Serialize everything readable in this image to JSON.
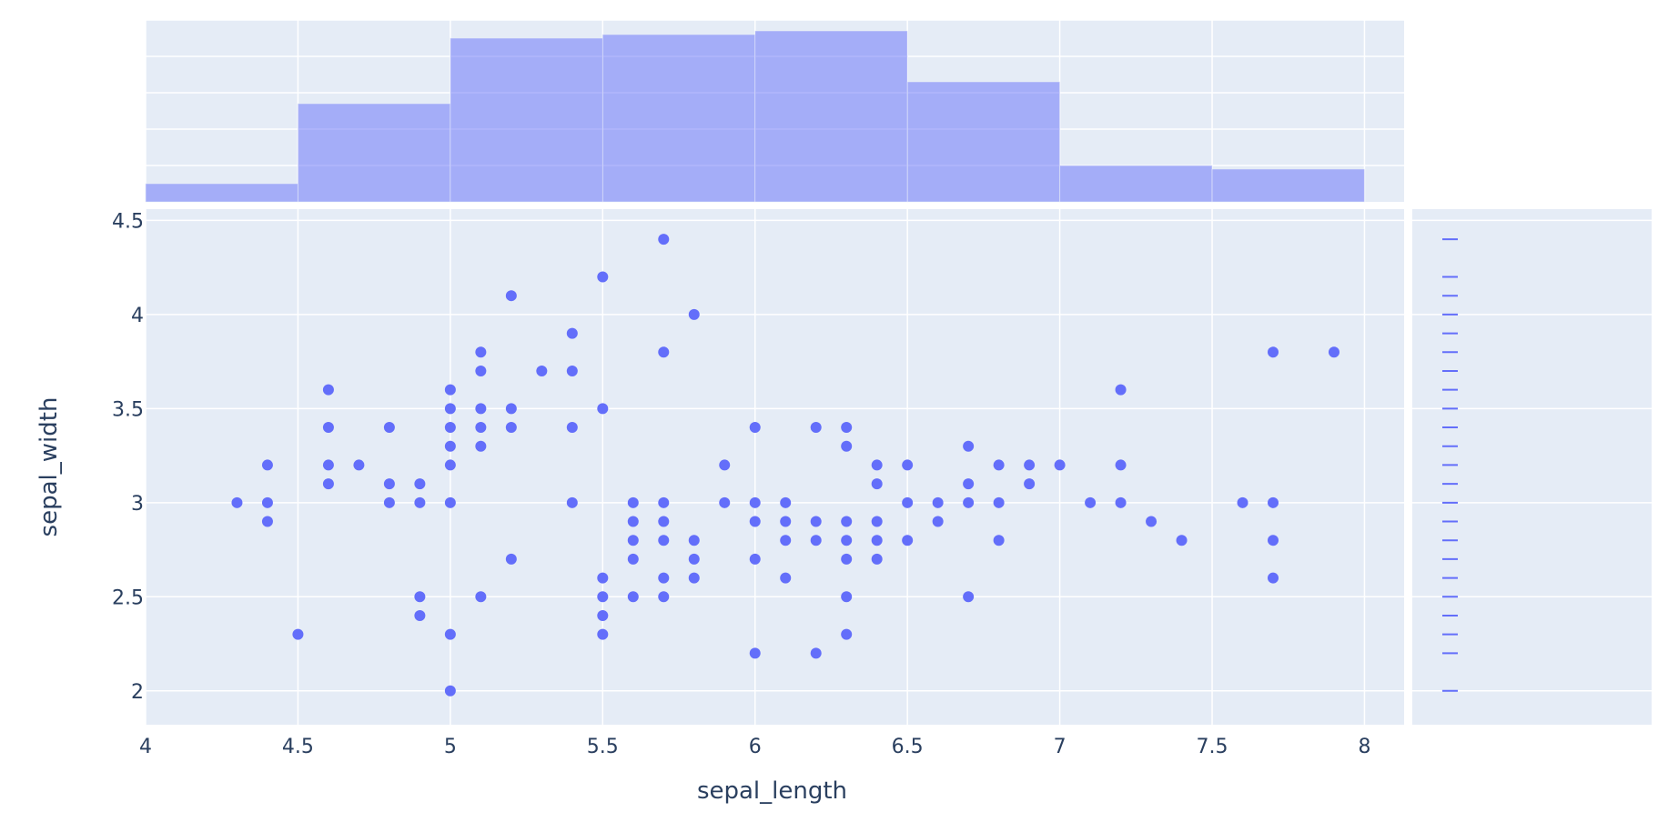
{
  "chart_data": {
    "type": "scatter",
    "xlabel": "sepal_length",
    "ylabel": "sepal_width",
    "xlim": [
      4,
      8.13
    ],
    "ylim": [
      1.82,
      4.56
    ],
    "x_ticks": [
      "4",
      "4.5",
      "5",
      "5.5",
      "6",
      "6.5",
      "7",
      "7.5",
      "8"
    ],
    "y_ticks": [
      "2",
      "2.5",
      "3",
      "3.5",
      "4",
      "4.5"
    ],
    "grid": true,
    "colors": {
      "marker": "#636efa",
      "plot_bg": "#e5ecf6",
      "grid": "#ffffff",
      "text": "#2a3f5f"
    },
    "points": [
      [
        4.3,
        3.0
      ],
      [
        4.4,
        3.2
      ],
      [
        4.4,
        3.0
      ],
      [
        4.4,
        2.9
      ],
      [
        4.5,
        2.3
      ],
      [
        4.6,
        3.6
      ],
      [
        4.6,
        3.4
      ],
      [
        4.6,
        3.2
      ],
      [
        4.6,
        3.1
      ],
      [
        4.7,
        3.2
      ],
      [
        4.8,
        3.4
      ],
      [
        4.8,
        3.1
      ],
      [
        4.8,
        3.0
      ],
      [
        4.9,
        3.1
      ],
      [
        4.9,
        3.0
      ],
      [
        4.9,
        2.5
      ],
      [
        4.9,
        2.4
      ],
      [
        5.0,
        3.6
      ],
      [
        5.0,
        3.5
      ],
      [
        5.0,
        3.4
      ],
      [
        5.0,
        3.3
      ],
      [
        5.0,
        3.2
      ],
      [
        5.0,
        3.0
      ],
      [
        5.0,
        2.3
      ],
      [
        5.0,
        2.0
      ],
      [
        5.1,
        3.8
      ],
      [
        5.1,
        3.7
      ],
      [
        5.1,
        3.5
      ],
      [
        5.1,
        3.4
      ],
      [
        5.1,
        3.3
      ],
      [
        5.1,
        2.5
      ],
      [
        5.2,
        4.1
      ],
      [
        5.2,
        3.5
      ],
      [
        5.2,
        3.4
      ],
      [
        5.2,
        2.7
      ],
      [
        5.3,
        3.7
      ],
      [
        5.4,
        3.9
      ],
      [
        5.4,
        3.7
      ],
      [
        5.4,
        3.4
      ],
      [
        5.4,
        3.0
      ],
      [
        5.5,
        4.2
      ],
      [
        5.5,
        3.5
      ],
      [
        5.5,
        2.6
      ],
      [
        5.5,
        2.5
      ],
      [
        5.5,
        2.4
      ],
      [
        5.5,
        2.3
      ],
      [
        5.6,
        3.0
      ],
      [
        5.6,
        2.9
      ],
      [
        5.6,
        2.8
      ],
      [
        5.6,
        2.7
      ],
      [
        5.6,
        2.5
      ],
      [
        5.7,
        4.4
      ],
      [
        5.7,
        3.8
      ],
      [
        5.7,
        3.0
      ],
      [
        5.7,
        2.9
      ],
      [
        5.7,
        2.8
      ],
      [
        5.7,
        2.6
      ],
      [
        5.7,
        2.5
      ],
      [
        5.8,
        4.0
      ],
      [
        5.8,
        2.8
      ],
      [
        5.8,
        2.7
      ],
      [
        5.8,
        2.6
      ],
      [
        5.9,
        3.2
      ],
      [
        5.9,
        3.0
      ],
      [
        6.0,
        3.4
      ],
      [
        6.0,
        3.0
      ],
      [
        6.0,
        2.9
      ],
      [
        6.0,
        2.7
      ],
      [
        6.0,
        2.2
      ],
      [
        6.1,
        3.0
      ],
      [
        6.1,
        2.9
      ],
      [
        6.1,
        2.8
      ],
      [
        6.1,
        2.6
      ],
      [
        6.2,
        3.4
      ],
      [
        6.2,
        2.9
      ],
      [
        6.2,
        2.8
      ],
      [
        6.2,
        2.2
      ],
      [
        6.3,
        3.4
      ],
      [
        6.3,
        3.3
      ],
      [
        6.3,
        2.9
      ],
      [
        6.3,
        2.8
      ],
      [
        6.3,
        2.7
      ],
      [
        6.3,
        2.5
      ],
      [
        6.3,
        2.3
      ],
      [
        6.4,
        3.2
      ],
      [
        6.4,
        3.1
      ],
      [
        6.4,
        2.9
      ],
      [
        6.4,
        2.8
      ],
      [
        6.4,
        2.7
      ],
      [
        6.5,
        3.2
      ],
      [
        6.5,
        3.0
      ],
      [
        6.5,
        2.8
      ],
      [
        6.6,
        3.0
      ],
      [
        6.6,
        2.9
      ],
      [
        6.7,
        3.3
      ],
      [
        6.7,
        3.1
      ],
      [
        6.7,
        3.0
      ],
      [
        6.7,
        2.5
      ],
      [
        6.8,
        3.2
      ],
      [
        6.8,
        3.0
      ],
      [
        6.8,
        2.8
      ],
      [
        6.9,
        3.2
      ],
      [
        6.9,
        3.1
      ],
      [
        7.0,
        3.2
      ],
      [
        7.1,
        3.0
      ],
      [
        7.2,
        3.6
      ],
      [
        7.2,
        3.2
      ],
      [
        7.2,
        3.0
      ],
      [
        7.3,
        2.9
      ],
      [
        7.4,
        2.8
      ],
      [
        7.6,
        3.0
      ],
      [
        7.7,
        3.8
      ],
      [
        7.7,
        3.0
      ],
      [
        7.7,
        2.8
      ],
      [
        7.7,
        2.6
      ],
      [
        7.9,
        3.8
      ]
    ],
    "marginal_x": {
      "type": "histogram",
      "bin_edges": [
        4,
        4.5,
        5,
        5.5,
        6,
        6.5,
        7,
        7.5,
        8
      ],
      "counts": [
        5,
        27,
        45,
        46,
        47,
        33,
        10,
        9
      ],
      "ymax": 50
    },
    "marginal_y": {
      "type": "rug",
      "values": [
        2.0,
        2.2,
        2.3,
        2.4,
        2.5,
        2.6,
        2.7,
        2.8,
        2.9,
        3.0,
        3.1,
        3.2,
        3.3,
        3.4,
        3.5,
        3.6,
        3.7,
        3.8,
        3.9,
        4.0,
        4.1,
        4.2,
        4.4
      ]
    }
  }
}
